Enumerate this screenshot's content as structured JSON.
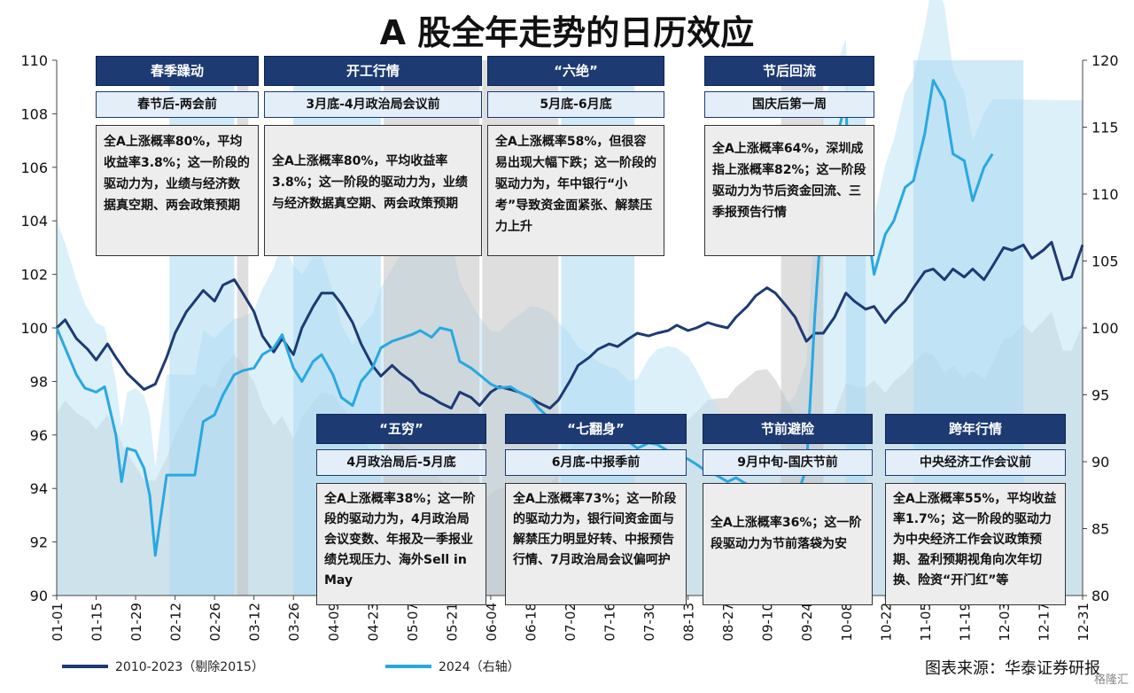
{
  "title": "A 股全年走势的日历效应",
  "source": "图表来源：华泰证券研报",
  "watermark": "格隆汇",
  "legend": {
    "series1": "2010-2023（剔除2015）",
    "series2": "2024（右轴）"
  },
  "colors": {
    "series1": "#1d3a73",
    "series2": "#29a8e0",
    "area2": "#bfe3f6",
    "area_grey": "#d5d5d5",
    "header": "#1d3a73",
    "subheader": "#e3eef8",
    "descbox": "#ededed"
  },
  "phases": [
    {
      "title": "春季躁动",
      "subtitle": "春节后-两会前",
      "desc": "全A上涨概率80%，平均收益率3.8%；这一阶段的驱动力为，业绩与经济数据真空期、两会政策预期"
    },
    {
      "title": "开工行情",
      "subtitle": "3月底-4月政治局会议前",
      "desc": "全A上涨概率80%，平均收益率3.8%；这一阶段的驱动力为，业绩与经济数据真空期、两会政策预期"
    },
    {
      "title": "“六绝”",
      "subtitle": "5月底-6月底",
      "desc": "全A上涨概率58%，但很容易出现大幅下跌；这一阶段的驱动力为，年中银行“小考”导致资金面紧张、解禁压力上升"
    },
    {
      "title": "节后回流",
      "subtitle": "国庆后第一周",
      "desc": "全A上涨概率64%，深圳成指上涨概率82%；这一阶段驱动力为节后资金回流、三季报预告行情"
    },
    {
      "title": "“五穷”",
      "subtitle": "4月政治局后-5月底",
      "desc": "全A上涨概率38%；这一阶段的驱动力为，4月政治局会议变数、年报及一季报业绩兑现压力、海外Sell in May"
    },
    {
      "title": "“七翻身”",
      "subtitle": "6月底-中报季前",
      "desc": "全A上涨概率73%；这一阶段的驱动力为，银行间资金面与解禁压力明显好转、中报预告行情、7月政治局会议偏呵护"
    },
    {
      "title": "节前避险",
      "subtitle": "9月中旬-国庆节前",
      "desc": "全A上涨概率36%；这一阶段驱动力为节前落袋为安"
    },
    {
      "title": "跨年行情",
      "subtitle": "中央经济工作会议前",
      "desc": "全A上涨概率55%，平均收益率1.7%；这一阶段的驱动力为中央经济工作会议政策预期、盈利预期视角向次年切换、险资“开门红”等"
    }
  ],
  "chart_data": {
    "type": "line",
    "title": "A 股全年走势的日历效应",
    "x_labels": [
      "01-01",
      "01-15",
      "01-29",
      "02-12",
      "02-26",
      "03-12",
      "03-26",
      "04-09",
      "04-23",
      "05-07",
      "05-21",
      "06-04",
      "06-18",
      "07-02",
      "07-16",
      "07-30",
      "08-13",
      "08-27",
      "09-10",
      "09-24",
      "10-08",
      "10-22",
      "11-05",
      "11-19",
      "12-03",
      "12-17",
      "12-31"
    ],
    "y_left": {
      "min": 90,
      "max": 110,
      "ticks": [
        90,
        92,
        94,
        96,
        98,
        100,
        102,
        104,
        106,
        108,
        110
      ]
    },
    "y_right": {
      "min": 80,
      "max": 120,
      "ticks": [
        80,
        85,
        90,
        95,
        100,
        105,
        110,
        115,
        120
      ]
    },
    "shaded_periods": [
      {
        "start": "02-10",
        "end": "03-05",
        "color": "blue"
      },
      {
        "start": "03-06",
        "end": "03-10",
        "color": "grey"
      },
      {
        "start": "03-26",
        "end": "04-26",
        "color": "blue"
      },
      {
        "start": "04-27",
        "end": "05-31",
        "color": "grey"
      },
      {
        "start": "06-01",
        "end": "06-28",
        "color": "grey"
      },
      {
        "start": "06-29",
        "end": "07-25",
        "color": "blue"
      },
      {
        "start": "09-15",
        "end": "09-30",
        "color": "grey"
      },
      {
        "start": "10-08",
        "end": "10-15",
        "color": "blue"
      },
      {
        "start": "11-01",
        "end": "12-10",
        "color": "blue"
      }
    ],
    "series": [
      {
        "name": "2010-2023（剔除2015）",
        "axis": "left",
        "points": [
          [
            "01-01",
            100.0
          ],
          [
            "01-04",
            100.3
          ],
          [
            "01-08",
            99.6
          ],
          [
            "01-12",
            99.2
          ],
          [
            "01-15",
            98.8
          ],
          [
            "01-19",
            99.4
          ],
          [
            "01-22",
            98.9
          ],
          [
            "01-26",
            98.3
          ],
          [
            "01-29",
            98.0
          ],
          [
            "02-01",
            97.7
          ],
          [
            "02-05",
            97.9
          ],
          [
            "02-09",
            98.9
          ],
          [
            "02-12",
            99.8
          ],
          [
            "02-16",
            100.6
          ],
          [
            "02-19",
            101.0
          ],
          [
            "02-22",
            101.4
          ],
          [
            "02-26",
            101.0
          ],
          [
            "03-01",
            101.6
          ],
          [
            "03-05",
            101.8
          ],
          [
            "03-08",
            101.3
          ],
          [
            "03-12",
            100.6
          ],
          [
            "03-15",
            99.7
          ],
          [
            "03-19",
            99.1
          ],
          [
            "03-22",
            99.6
          ],
          [
            "03-26",
            99.0
          ],
          [
            "03-29",
            100.0
          ],
          [
            "04-02",
            100.8
          ],
          [
            "04-05",
            101.3
          ],
          [
            "04-09",
            101.3
          ],
          [
            "04-12",
            100.9
          ],
          [
            "04-16",
            100.2
          ],
          [
            "04-19",
            99.4
          ],
          [
            "04-23",
            98.6
          ],
          [
            "04-26",
            98.2
          ],
          [
            "04-30",
            98.6
          ],
          [
            "05-03",
            98.3
          ],
          [
            "05-07",
            98.0
          ],
          [
            "05-10",
            97.6
          ],
          [
            "05-14",
            97.4
          ],
          [
            "05-17",
            97.2
          ],
          [
            "05-21",
            97.0
          ],
          [
            "05-24",
            97.6
          ],
          [
            "05-28",
            97.4
          ],
          [
            "05-31",
            97.1
          ],
          [
            "06-04",
            97.6
          ],
          [
            "06-07",
            97.8
          ],
          [
            "06-11",
            97.7
          ],
          [
            "06-14",
            97.6
          ],
          [
            "06-18",
            97.4
          ],
          [
            "06-21",
            97.2
          ],
          [
            "06-25",
            97.0
          ],
          [
            "06-28",
            97.3
          ],
          [
            "07-02",
            98.0
          ],
          [
            "07-05",
            98.6
          ],
          [
            "07-09",
            98.9
          ],
          [
            "07-12",
            99.2
          ],
          [
            "07-16",
            99.4
          ],
          [
            "07-19",
            99.3
          ],
          [
            "07-23",
            99.6
          ],
          [
            "07-26",
            99.8
          ],
          [
            "07-30",
            99.7
          ],
          [
            "08-02",
            99.8
          ],
          [
            "08-06",
            99.9
          ],
          [
            "08-09",
            100.1
          ],
          [
            "08-13",
            99.9
          ],
          [
            "08-16",
            100.0
          ],
          [
            "08-20",
            100.2
          ],
          [
            "08-23",
            100.1
          ],
          [
            "08-27",
            100.0
          ],
          [
            "08-30",
            100.4
          ],
          [
            "09-03",
            100.8
          ],
          [
            "09-06",
            101.2
          ],
          [
            "09-10",
            101.5
          ],
          [
            "09-13",
            101.3
          ],
          [
            "09-17",
            100.8
          ],
          [
            "09-20",
            100.4
          ],
          [
            "09-24",
            99.5
          ],
          [
            "09-27",
            99.8
          ],
          [
            "09-30",
            99.8
          ],
          [
            "10-04",
            100.4
          ],
          [
            "10-08",
            101.3
          ],
          [
            "10-11",
            101.0
          ],
          [
            "10-15",
            100.7
          ],
          [
            "10-18",
            100.8
          ],
          [
            "10-22",
            100.2
          ],
          [
            "10-25",
            100.6
          ],
          [
            "10-29",
            101.0
          ],
          [
            "11-01",
            101.5
          ],
          [
            "11-05",
            102.1
          ],
          [
            "11-08",
            102.2
          ],
          [
            "11-12",
            101.8
          ],
          [
            "11-15",
            102.2
          ],
          [
            "11-19",
            101.9
          ],
          [
            "11-22",
            102.2
          ],
          [
            "11-26",
            101.8
          ],
          [
            "11-29",
            102.3
          ],
          [
            "12-03",
            103.0
          ],
          [
            "12-06",
            102.9
          ],
          [
            "12-10",
            103.1
          ],
          [
            "12-13",
            102.6
          ],
          [
            "12-17",
            102.9
          ],
          [
            "12-20",
            103.2
          ],
          [
            "12-24",
            101.8
          ],
          [
            "12-27",
            101.9
          ],
          [
            "12-31",
            103.1
          ]
        ]
      },
      {
        "name": "2024（右轴）",
        "axis": "right",
        "points": [
          [
            "01-01",
            100.0
          ],
          [
            "01-04",
            98.5
          ],
          [
            "01-08",
            96.5
          ],
          [
            "01-11",
            95.5
          ],
          [
            "01-15",
            95.2
          ],
          [
            "01-18",
            95.6
          ],
          [
            "01-22",
            92.0
          ],
          [
            "01-24",
            88.5
          ],
          [
            "01-26",
            91.0
          ],
          [
            "01-29",
            90.8
          ],
          [
            "02-01",
            89.5
          ],
          [
            "02-03",
            87.5
          ],
          [
            "02-05",
            83.0
          ],
          [
            "02-07",
            86.0
          ],
          [
            "02-09",
            89.0
          ],
          [
            "02-19",
            89.0
          ],
          [
            "02-22",
            93.0
          ],
          [
            "02-26",
            93.5
          ],
          [
            "03-01",
            95.0
          ],
          [
            "03-05",
            96.5
          ],
          [
            "03-08",
            96.8
          ],
          [
            "03-12",
            97.0
          ],
          [
            "03-15",
            98.0
          ],
          [
            "03-19",
            98.5
          ],
          [
            "03-22",
            99.5
          ],
          [
            "03-26",
            97.0
          ],
          [
            "03-29",
            96.0
          ],
          [
            "04-02",
            97.5
          ],
          [
            "04-05",
            98.0
          ],
          [
            "04-09",
            96.5
          ],
          [
            "04-12",
            94.8
          ],
          [
            "04-16",
            94.2
          ],
          [
            "04-19",
            96.0
          ],
          [
            "04-23",
            97.0
          ],
          [
            "04-26",
            98.5
          ],
          [
            "04-30",
            99.0
          ],
          [
            "05-07",
            99.5
          ],
          [
            "05-10",
            99.8
          ],
          [
            "05-14",
            99.3
          ],
          [
            "05-17",
            100.0
          ],
          [
            "05-21",
            99.8
          ],
          [
            "05-24",
            97.5
          ],
          [
            "05-28",
            97.0
          ],
          [
            "05-31",
            96.5
          ],
          [
            "06-04",
            95.8
          ],
          [
            "06-07",
            95.5
          ],
          [
            "06-11",
            95.6
          ],
          [
            "06-14",
            95.2
          ],
          [
            "06-18",
            94.8
          ],
          [
            "06-21",
            94.0
          ],
          [
            "06-25",
            93.2
          ],
          [
            "06-28",
            92.5
          ],
          [
            "07-02",
            92.3
          ],
          [
            "07-05",
            92.0
          ],
          [
            "07-09",
            92.6
          ],
          [
            "07-12",
            92.8
          ],
          [
            "07-16",
            93.0
          ],
          [
            "07-19",
            92.9
          ],
          [
            "07-23",
            91.5
          ],
          [
            "07-26",
            91.0
          ],
          [
            "07-30",
            91.4
          ],
          [
            "08-02",
            91.3
          ],
          [
            "08-06",
            90.8
          ],
          [
            "08-09",
            90.5
          ],
          [
            "08-13",
            90.2
          ],
          [
            "08-16",
            89.8
          ],
          [
            "08-20",
            89.2
          ],
          [
            "08-23",
            89.0
          ],
          [
            "08-27",
            88.5
          ],
          [
            "08-30",
            88.8
          ],
          [
            "09-03",
            88.3
          ],
          [
            "09-06",
            87.8
          ],
          [
            "09-10",
            87.3
          ],
          [
            "09-13",
            87.0
          ],
          [
            "09-17",
            86.8
          ],
          [
            "09-20",
            87.0
          ],
          [
            "09-24",
            89.5
          ],
          [
            "09-26",
            97.0
          ],
          [
            "09-27",
            101.0
          ],
          [
            "09-30",
            110.0
          ],
          [
            "10-08",
            117.0
          ],
          [
            "10-09",
            110.5
          ],
          [
            "10-11",
            106.5
          ],
          [
            "10-15",
            108.5
          ],
          [
            "10-18",
            104.0
          ],
          [
            "10-22",
            107.0
          ],
          [
            "10-25",
            108.0
          ],
          [
            "10-29",
            110.5
          ],
          [
            "11-01",
            111.0
          ],
          [
            "11-05",
            114.5
          ],
          [
            "11-08",
            118.5
          ],
          [
            "11-12",
            117.0
          ],
          [
            "11-15",
            113.0
          ],
          [
            "11-19",
            112.5
          ],
          [
            "11-22",
            109.5
          ],
          [
            "11-26",
            112.0
          ],
          [
            "11-29",
            113.0
          ]
        ]
      }
    ],
    "background_areas": [
      "2024（右轴） high-low band",
      "2010-2023 dispersion band"
    ]
  }
}
